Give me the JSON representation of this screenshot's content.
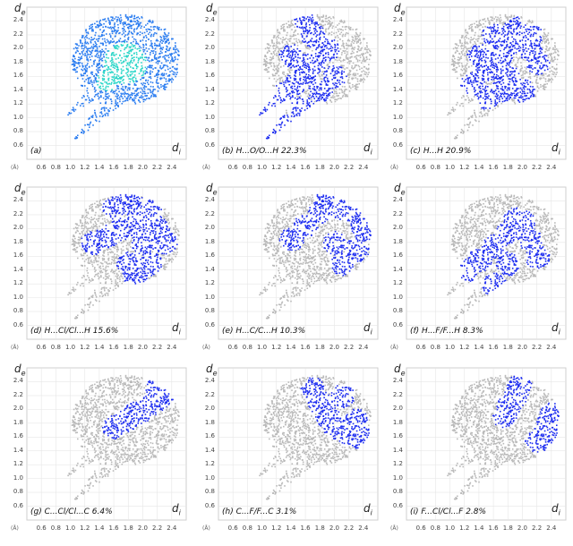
{
  "figure": {
    "y_axis_label": "d",
    "y_axis_sub": "e",
    "x_axis_label": "d",
    "x_axis_sub": "i",
    "unit_label": "(Å)",
    "colors": {
      "full_map": "#2a7cf0",
      "full_map_hot": "#29d6c8",
      "highlight": "#1c2cf0",
      "grey": "#b9b9b9",
      "frame": "#cfcfcf"
    }
  },
  "chart_data": [
    {
      "type": "scatter",
      "panel": "a",
      "title": "(a)",
      "percent": "",
      "full_colormap": true,
      "x_ticks": [
        "0.6",
        "0.8",
        "1.0",
        "1.2",
        "1.4",
        "1.6",
        "1.8",
        "2.0",
        "2.2",
        "2.4"
      ],
      "y_ticks": [
        "2.4",
        "2.2",
        "2.0",
        "1.8",
        "1.6",
        "1.4",
        "1.2",
        "1.0",
        "0.8",
        "0.6"
      ],
      "xlim": [
        0.4,
        2.6
      ],
      "ylim": [
        0.4,
        2.6
      ],
      "highlight": []
    },
    {
      "type": "scatter",
      "panel": "b",
      "title": "(b)  H...O/O...H  22.3%",
      "percent": "22.3%",
      "full_colormap": false,
      "x_ticks": [
        "0.6",
        "0.8",
        "1.0",
        "1.2",
        "1.4",
        "1.6",
        "1.8",
        "2.0",
        "2.2",
        "2.4"
      ],
      "y_ticks": [
        "2.4",
        "2.2",
        "2.0",
        "1.8",
        "1.6",
        "1.4",
        "1.2",
        "1.0",
        "0.8",
        "0.6"
      ],
      "xlim": [
        0.4,
        2.6
      ],
      "ylim": [
        0.4,
        2.6
      ],
      "highlight": [
        [
          0.95,
          1.05
        ],
        [
          1.1,
          1.2
        ],
        [
          1.3,
          1.35
        ],
        [
          1.45,
          1.5
        ],
        [
          1.6,
          1.65
        ],
        [
          1.7,
          1.8
        ],
        [
          1.05,
          0.7
        ],
        [
          1.3,
          0.9
        ],
        [
          1.55,
          1.15
        ],
        [
          1.8,
          1.4
        ],
        [
          2.0,
          1.6
        ],
        [
          1.9,
          2.0
        ],
        [
          1.7,
          2.2
        ],
        [
          1.6,
          2.4
        ],
        [
          1.4,
          1.9
        ],
        [
          1.6,
          1.75
        ]
      ]
    },
    {
      "type": "scatter",
      "panel": "c",
      "title": "(c)  H...H  20.9%",
      "percent": "20.9%",
      "full_colormap": false,
      "x_ticks": [
        "0.6",
        "0.8",
        "1.0",
        "1.2",
        "1.4",
        "1.6",
        "1.8",
        "2.0",
        "2.2",
        "2.4"
      ],
      "y_ticks": [
        "2.4",
        "2.2",
        "2.0",
        "1.8",
        "1.6",
        "1.4",
        "1.2",
        "1.0",
        "0.8",
        "0.6"
      ],
      "xlim": [
        0.4,
        2.6
      ],
      "ylim": [
        0.4,
        2.6
      ],
      "highlight": [
        [
          1.3,
          1.5
        ],
        [
          1.5,
          1.7
        ],
        [
          1.7,
          1.9
        ],
        [
          1.9,
          2.1
        ],
        [
          2.1,
          2.2
        ],
        [
          1.4,
          1.9
        ],
        [
          1.6,
          2.2
        ],
        [
          1.8,
          1.6
        ],
        [
          2.0,
          1.4
        ],
        [
          2.2,
          1.8
        ],
        [
          1.5,
          1.3
        ],
        [
          1.7,
          1.4
        ],
        [
          1.9,
          2.3
        ],
        [
          2.1,
          2.0
        ]
      ]
    },
    {
      "type": "scatter",
      "panel": "d",
      "title": "(d)  H...Cl/Cl...H  15.6%",
      "percent": "15.6%",
      "full_colormap": false,
      "x_ticks": [
        "0.6",
        "0.8",
        "1.0",
        "1.2",
        "1.4",
        "1.6",
        "1.8",
        "2.0",
        "2.2",
        "2.4"
      ],
      "y_ticks": [
        "2.4",
        "2.2",
        "2.0",
        "1.8",
        "1.6",
        "1.4",
        "1.2",
        "1.0",
        "0.8",
        "0.6"
      ],
      "xlim": [
        0.4,
        2.6
      ],
      "ylim": [
        0.4,
        2.6
      ],
      "highlight": [
        [
          1.3,
          1.8
        ],
        [
          1.5,
          1.9
        ],
        [
          1.7,
          2.0
        ],
        [
          1.9,
          2.1
        ],
        [
          2.1,
          2.2
        ],
        [
          1.6,
          2.3
        ],
        [
          1.8,
          2.4
        ],
        [
          2.0,
          2.3
        ],
        [
          2.2,
          2.0
        ],
        [
          2.3,
          1.8
        ],
        [
          2.1,
          1.5
        ],
        [
          1.9,
          1.3
        ],
        [
          1.8,
          1.5
        ],
        [
          2.0,
          1.8
        ]
      ]
    },
    {
      "type": "scatter",
      "panel": "e",
      "title": "(e)  H...C/C...H  10.3%",
      "percent": "10.3%",
      "full_colormap": false,
      "x_ticks": [
        "0.6",
        "0.8",
        "1.0",
        "1.2",
        "1.4",
        "1.6",
        "1.8",
        "2.0",
        "2.2",
        "2.4"
      ],
      "y_ticks": [
        "2.4",
        "2.2",
        "2.0",
        "1.8",
        "1.6",
        "1.4",
        "1.2",
        "1.0",
        "0.8",
        "0.6"
      ],
      "xlim": [
        0.4,
        2.6
      ],
      "ylim": [
        0.4,
        2.6
      ],
      "highlight": [
        [
          1.4,
          1.85
        ],
        [
          1.6,
          2.05
        ],
        [
          1.8,
          2.25
        ],
        [
          1.9,
          2.45
        ],
        [
          2.1,
          2.3
        ],
        [
          2.3,
          2.2
        ],
        [
          2.4,
          2.0
        ],
        [
          2.3,
          1.7
        ],
        [
          2.1,
          1.5
        ],
        [
          2.0,
          1.8
        ]
      ]
    },
    {
      "type": "scatter",
      "panel": "f",
      "title": "(f)  H...F/F...H  8.3%",
      "percent": "8.3%",
      "full_colormap": false,
      "x_ticks": [
        "0.6",
        "0.8",
        "1.0",
        "1.2",
        "1.4",
        "1.6",
        "1.8",
        "2.0",
        "2.2",
        "2.4"
      ],
      "y_ticks": [
        "2.4",
        "2.2",
        "2.0",
        "1.8",
        "1.6",
        "1.4",
        "1.2",
        "1.0",
        "0.8",
        "0.6"
      ],
      "xlim": [
        0.4,
        2.6
      ],
      "ylim": [
        0.4,
        2.6
      ],
      "highlight": [
        [
          1.2,
          1.4
        ],
        [
          1.4,
          1.55
        ],
        [
          1.6,
          1.75
        ],
        [
          1.8,
          1.95
        ],
        [
          2.0,
          2.1
        ],
        [
          1.6,
          1.2
        ],
        [
          1.8,
          1.5
        ],
        [
          1.9,
          2.15
        ],
        [
          2.1,
          1.85
        ],
        [
          2.2,
          1.6
        ]
      ]
    },
    {
      "type": "scatter",
      "panel": "g",
      "title": "(g)  C...Cl/Cl...C  6.4%",
      "percent": "6.4%",
      "full_colormap": false,
      "x_ticks": [
        "0.6",
        "0.8",
        "1.0",
        "1.2",
        "1.4",
        "1.6",
        "1.8",
        "2.0",
        "2.2",
        "2.4"
      ],
      "y_ticks": [
        "2.4",
        "2.2",
        "2.0",
        "1.8",
        "1.6",
        "1.4",
        "1.2",
        "1.0",
        "0.8",
        "0.6"
      ],
      "xlim": [
        0.4,
        2.6
      ],
      "ylim": [
        0.4,
        2.6
      ],
      "highlight": [
        [
          1.6,
          1.75
        ],
        [
          1.75,
          1.85
        ],
        [
          1.9,
          1.95
        ],
        [
          2.05,
          2.05
        ],
        [
          2.2,
          2.15
        ],
        [
          2.35,
          2.25
        ],
        [
          2.4,
          2.35
        ],
        [
          2.2,
          2.3
        ],
        [
          2.0,
          2.0
        ]
      ]
    },
    {
      "type": "scatter",
      "panel": "h",
      "title": "(h)  C...F/F...C  3.1%",
      "percent": "3.1%",
      "full_colormap": false,
      "x_ticks": [
        "0.6",
        "0.8",
        "1.0",
        "1.2",
        "1.4",
        "1.6",
        "1.8",
        "2.0",
        "2.2",
        "2.4"
      ],
      "y_ticks": [
        "2.4",
        "2.2",
        "2.0",
        "1.8",
        "1.6",
        "1.4",
        "1.2",
        "1.0",
        "0.8",
        "0.6"
      ],
      "xlim": [
        0.4,
        2.6
      ],
      "ylim": [
        0.4,
        2.6
      ],
      "highlight": [
        [
          1.7,
          2.3
        ],
        [
          1.8,
          2.1
        ],
        [
          1.9,
          1.9
        ],
        [
          2.0,
          1.75
        ],
        [
          2.2,
          1.65
        ],
        [
          2.35,
          1.6
        ],
        [
          2.1,
          2.2
        ],
        [
          2.3,
          1.85
        ]
      ]
    },
    {
      "type": "scatter",
      "panel": "i",
      "title": "(i)  F...Cl/Cl...F  2.8%",
      "percent": "2.8%",
      "full_colormap": false,
      "x_ticks": [
        "0.6",
        "0.8",
        "1.0",
        "1.2",
        "1.4",
        "1.6",
        "1.8",
        "2.0",
        "2.2",
        "2.4"
      ],
      "y_ticks": [
        "2.4",
        "2.2",
        "2.0",
        "1.8",
        "1.6",
        "1.4",
        "1.2",
        "1.0",
        "0.8",
        "0.6"
      ],
      "xlim": [
        0.4,
        2.6
      ],
      "ylim": [
        0.4,
        2.6
      ],
      "highlight": [
        [
          1.75,
          1.9
        ],
        [
          1.8,
          2.05
        ],
        [
          1.9,
          2.2
        ],
        [
          1.95,
          2.35
        ],
        [
          2.2,
          1.55
        ],
        [
          2.3,
          1.65
        ],
        [
          2.35,
          1.8
        ],
        [
          2.4,
          1.95
        ]
      ]
    }
  ]
}
